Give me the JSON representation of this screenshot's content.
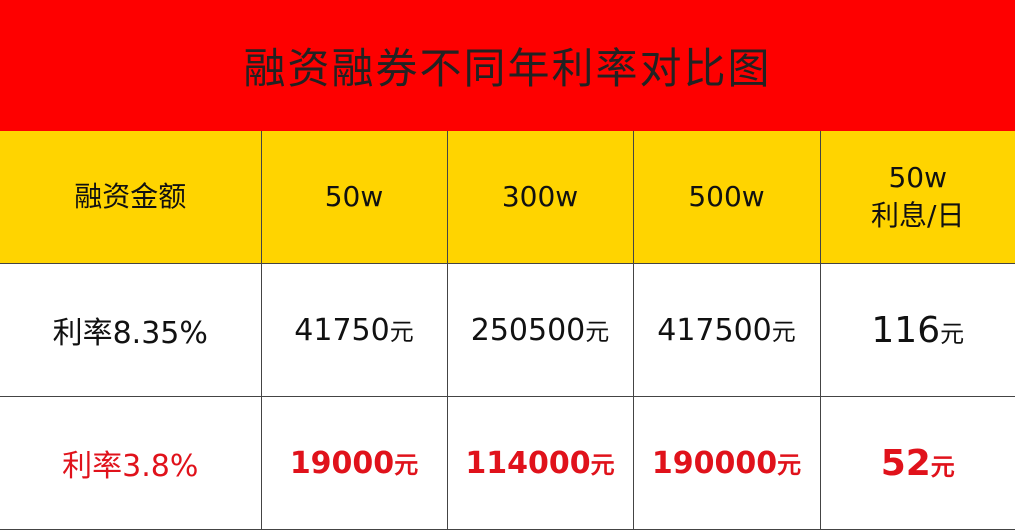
{
  "title": "融资融券不同年利率对比图",
  "colors": {
    "title_bg": "#fe0000",
    "header_bg": "#ffd400",
    "highlight_text": "#e0121b"
  },
  "table": {
    "header": {
      "label": "融资金额",
      "cols": [
        "50w",
        "300w",
        "500w"
      ],
      "last_line1": "50w",
      "last_line2": "利息/日"
    },
    "rows": [
      {
        "label": "利率8.35%",
        "values": [
          "41750",
          "250500",
          "417500"
        ],
        "daily": "116",
        "unit": "元"
      },
      {
        "label": "利率3.8%",
        "values": [
          "19000",
          "114000",
          "190000"
        ],
        "daily": "52",
        "unit": "元"
      }
    ]
  }
}
